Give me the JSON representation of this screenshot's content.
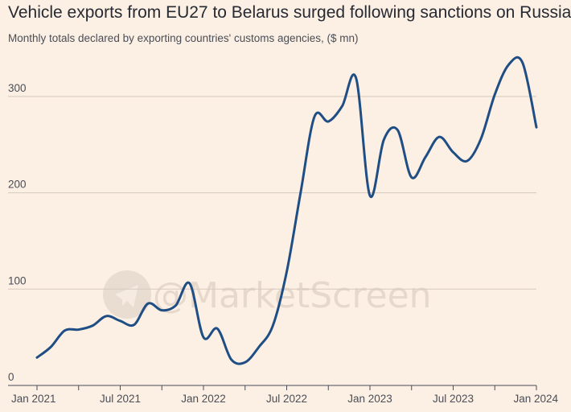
{
  "chart_data": {
    "type": "line",
    "title": "Vehicle exports from EU27 to Belarus surged following sanctions on Russia",
    "subtitle": "Monthly totals declared by exporting countries' customs agencies, ($ mn)",
    "xlabel": "",
    "ylabel": "",
    "ylim": [
      0,
      350
    ],
    "yticks": [
      0,
      100,
      200,
      300
    ],
    "xlim": [
      "2021-01",
      "2024-01"
    ],
    "xticks": [
      {
        "date": "2021-01",
        "label": "Jan 2021"
      },
      {
        "date": "2021-07",
        "label": "Jul 2021"
      },
      {
        "date": "2022-01",
        "label": "Jan 2022"
      },
      {
        "date": "2022-07",
        "label": "Jul 2022"
      },
      {
        "date": "2023-01",
        "label": "Jan 2023"
      },
      {
        "date": "2023-07",
        "label": "Jul 2023"
      },
      {
        "date": "2024-01",
        "label": "Jan 2024"
      }
    ],
    "grid": true,
    "line_color": "#1f4e85",
    "series": [
      {
        "x": [
          "2021-01",
          "2021-02",
          "2021-03",
          "2021-04",
          "2021-05",
          "2021-06",
          "2021-07",
          "2021-08",
          "2021-09",
          "2021-10",
          "2021-11",
          "2021-12",
          "2022-01",
          "2022-02",
          "2022-03",
          "2022-04",
          "2022-05",
          "2022-06",
          "2022-07",
          "2022-08",
          "2022-09",
          "2022-10",
          "2022-11",
          "2022-12",
          "2023-01",
          "2023-02",
          "2023-03",
          "2023-04",
          "2023-05",
          "2023-06",
          "2023-07",
          "2023-08",
          "2023-09",
          "2023-10",
          "2023-11",
          "2023-12",
          "2024-01"
        ],
        "values": [
          29,
          40,
          57,
          58,
          62,
          72,
          67,
          63,
          85,
          78,
          83,
          106,
          50,
          59,
          27,
          24,
          40,
          62,
          118,
          200,
          279,
          274,
          290,
          319,
          197,
          255,
          265,
          216,
          237,
          258,
          242,
          233,
          256,
          302,
          333,
          335,
          268
        ]
      }
    ]
  },
  "watermark": {
    "text": "@MarketScreen",
    "icon": "telegram-icon"
  }
}
